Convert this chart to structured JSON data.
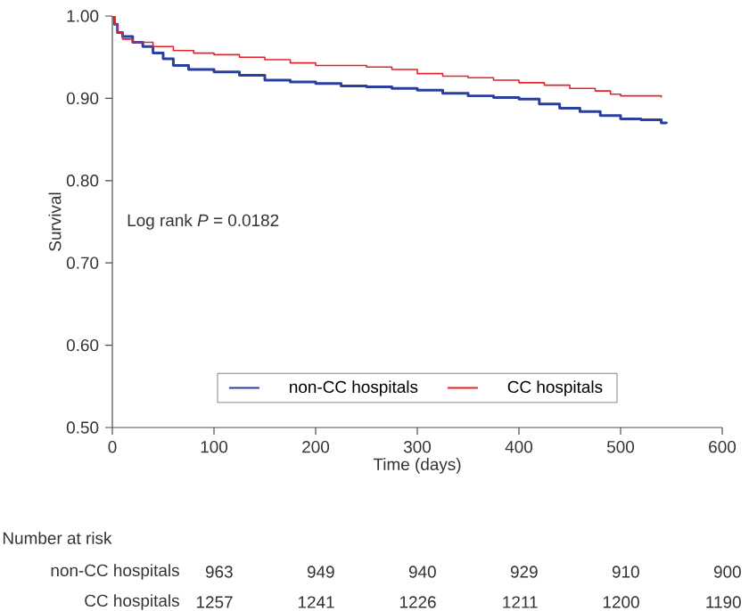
{
  "chart_data": {
    "type": "step",
    "xlabel": "Time (days)",
    "ylabel": "Survival",
    "xlim": [
      0,
      600
    ],
    "xticks": [
      0,
      100,
      200,
      300,
      400,
      500,
      600
    ],
    "ylim": [
      0.5,
      1.0
    ],
    "yticks": [
      {
        "value": 0.5,
        "label": "0.50"
      },
      {
        "value": 0.6,
        "label": "0.60"
      },
      {
        "value": 0.7,
        "label": "0.70"
      },
      {
        "value": 0.8,
        "label": "0.80"
      },
      {
        "value": 0.9,
        "label": "0.90"
      },
      {
        "value": 1.0,
        "label": "1.00"
      }
    ],
    "grid": false,
    "legend": "bottom",
    "marker": "none",
    "line_style": "solid",
    "series": [
      {
        "name": "non-CC hospitals",
        "color": "#2b3f9e",
        "x": [
          0,
          2,
          5,
          10,
          20,
          30,
          40,
          50,
          60,
          75,
          100,
          125,
          150,
          175,
          200,
          225,
          250,
          275,
          300,
          325,
          350,
          375,
          400,
          420,
          440,
          460,
          480,
          500,
          520,
          540,
          545
        ],
        "values": [
          1.0,
          0.99,
          0.98,
          0.975,
          0.968,
          0.963,
          0.955,
          0.948,
          0.94,
          0.935,
          0.932,
          0.928,
          0.922,
          0.92,
          0.918,
          0.915,
          0.914,
          0.912,
          0.91,
          0.906,
          0.903,
          0.901,
          0.899,
          0.893,
          0.888,
          0.884,
          0.879,
          0.875,
          0.874,
          0.87,
          0.869
        ]
      },
      {
        "name": "CC hospitals",
        "color": "#e8222a",
        "x": [
          0,
          2,
          5,
          10,
          20,
          40,
          60,
          80,
          100,
          125,
          150,
          175,
          200,
          250,
          275,
          300,
          325,
          350,
          375,
          400,
          425,
          450,
          475,
          490,
          500,
          540
        ],
        "values": [
          1.0,
          0.99,
          0.98,
          0.972,
          0.968,
          0.963,
          0.958,
          0.955,
          0.953,
          0.95,
          0.947,
          0.943,
          0.94,
          0.938,
          0.935,
          0.93,
          0.927,
          0.925,
          0.922,
          0.919,
          0.916,
          0.912,
          0.909,
          0.905,
          0.903,
          0.901
        ]
      }
    ],
    "annotations": [
      "Log rank *P* = 0.0182",
      "Number at risk",
      "non-CC hospitals",
      "963",
      "949",
      "940",
      "929",
      "910",
      "900",
      "CC hospitals",
      "1257",
      "1241",
      "1226",
      "1211",
      "1200",
      "1190"
    ]
  }
}
